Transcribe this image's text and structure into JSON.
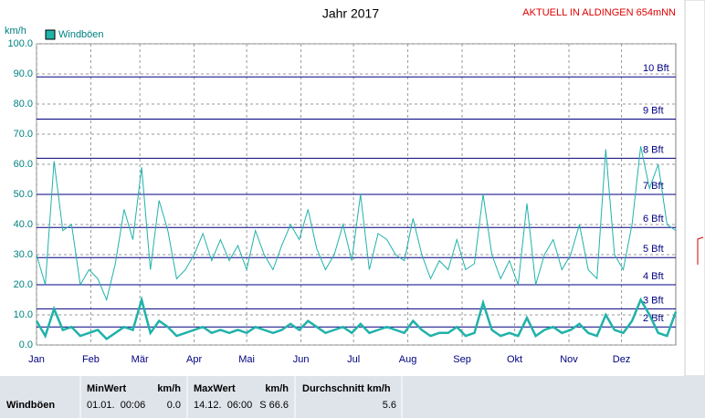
{
  "chart_data": {
    "type": "line",
    "title": "Jahr 2017",
    "annotation": "AKTUELL IN ALDINGEN 654mNN",
    "y_label": "km/h",
    "xlim": [
      0,
      365
    ],
    "xticks": [
      {
        "value": 0,
        "label": "Jan"
      },
      {
        "value": 31,
        "label": "Feb"
      },
      {
        "value": 59,
        "label": "Mär"
      },
      {
        "value": 90,
        "label": "Apr"
      },
      {
        "value": 120,
        "label": "Mai"
      },
      {
        "value": 151,
        "label": "Jun"
      },
      {
        "value": 181,
        "label": "Jul"
      },
      {
        "value": 212,
        "label": "Aug"
      },
      {
        "value": 243,
        "label": "Sep"
      },
      {
        "value": 273,
        "label": "Okt"
      },
      {
        "value": 304,
        "label": "Nov"
      },
      {
        "value": 334,
        "label": "Dez"
      }
    ],
    "ylim": [
      0,
      100
    ],
    "yticks": [
      {
        "value": 0,
        "label": "0.0"
      },
      {
        "value": 10,
        "label": "10.0"
      },
      {
        "value": 20,
        "label": "20.0"
      },
      {
        "value": 30,
        "label": "30.0"
      },
      {
        "value": 40,
        "label": "40.0"
      },
      {
        "value": 50,
        "label": "50.0"
      },
      {
        "value": 60,
        "label": "60.0"
      },
      {
        "value": 70,
        "label": "70.0"
      },
      {
        "value": 80,
        "label": "80.0"
      },
      {
        "value": 90,
        "label": "90.0"
      },
      {
        "value": 100,
        "label": "100.0"
      }
    ],
    "grid": true,
    "reference_lines": {
      "color": "#000080",
      "lines": [
        {
          "value": 6,
          "label": "2 Bft"
        },
        {
          "value": 12,
          "label": "3 Bft"
        },
        {
          "value": 20,
          "label": "4 Bft"
        },
        {
          "value": 29,
          "label": "5 Bft"
        },
        {
          "value": 39,
          "label": "6 Bft"
        },
        {
          "value": 50,
          "label": "7 Bft"
        },
        {
          "value": 62,
          "label": "8 Bft"
        },
        {
          "value": 75,
          "label": "9 Bft"
        },
        {
          "value": 89,
          "label": "10 Bft"
        }
      ]
    },
    "x": [
      0,
      5,
      10,
      15,
      20,
      25,
      30,
      35,
      40,
      45,
      50,
      55,
      60,
      65,
      70,
      75,
      80,
      85,
      90,
      95,
      100,
      105,
      110,
      115,
      120,
      125,
      130,
      135,
      140,
      145,
      150,
      155,
      160,
      165,
      170,
      175,
      180,
      185,
      190,
      195,
      200,
      205,
      210,
      215,
      220,
      225,
      230,
      235,
      240,
      245,
      250,
      255,
      260,
      265,
      270,
      275,
      280,
      285,
      290,
      295,
      300,
      305,
      310,
      315,
      320,
      325,
      330,
      335,
      340,
      345,
      350,
      355,
      360,
      365
    ],
    "series": [
      {
        "name": "Windböen",
        "color": "#20b2aa",
        "width": 1,
        "values": [
          30,
          20,
          61,
          38,
          40,
          20,
          25,
          22,
          15,
          27,
          45,
          35,
          59,
          25,
          48,
          38,
          22,
          25,
          30,
          37,
          28,
          35,
          28,
          33,
          25,
          38,
          30,
          25,
          33,
          40,
          35,
          45,
          32,
          25,
          30,
          40,
          28,
          50,
          25,
          37,
          35,
          30,
          28,
          42,
          30,
          22,
          28,
          25,
          35,
          25,
          27,
          50,
          30,
          22,
          28,
          20,
          47,
          20,
          30,
          35,
          25,
          30,
          40,
          25,
          22,
          65,
          30,
          25,
          40,
          66,
          52,
          60,
          40,
          38
        ]
      },
      {
        "color": "#20b2aa",
        "width": 2.5,
        "values": [
          8,
          3,
          12,
          5,
          6,
          3,
          4,
          5,
          2,
          4,
          6,
          5,
          15,
          4,
          8,
          6,
          3,
          4,
          5,
          6,
          4,
          5,
          4,
          5,
          4,
          6,
          5,
          4,
          5,
          7,
          5,
          8,
          6,
          4,
          5,
          6,
          4,
          7,
          4,
          5,
          6,
          5,
          4,
          8,
          5,
          3,
          4,
          4,
          6,
          3,
          4,
          14,
          5,
          3,
          4,
          3,
          9,
          3,
          5,
          6,
          4,
          5,
          7,
          4,
          3,
          10,
          5,
          4,
          8,
          15,
          10,
          4,
          3,
          11
        ]
      }
    ]
  },
  "table": {
    "headers": [
      "MinWert",
      "km/h",
      "MaxWert",
      "km/h",
      "Durchschnitt km/h"
    ],
    "row": [
      "Windböen",
      "01.01.  00:06",
      "0.0",
      "14.12.  06:00",
      "S 66.6",
      "5.6"
    ]
  }
}
